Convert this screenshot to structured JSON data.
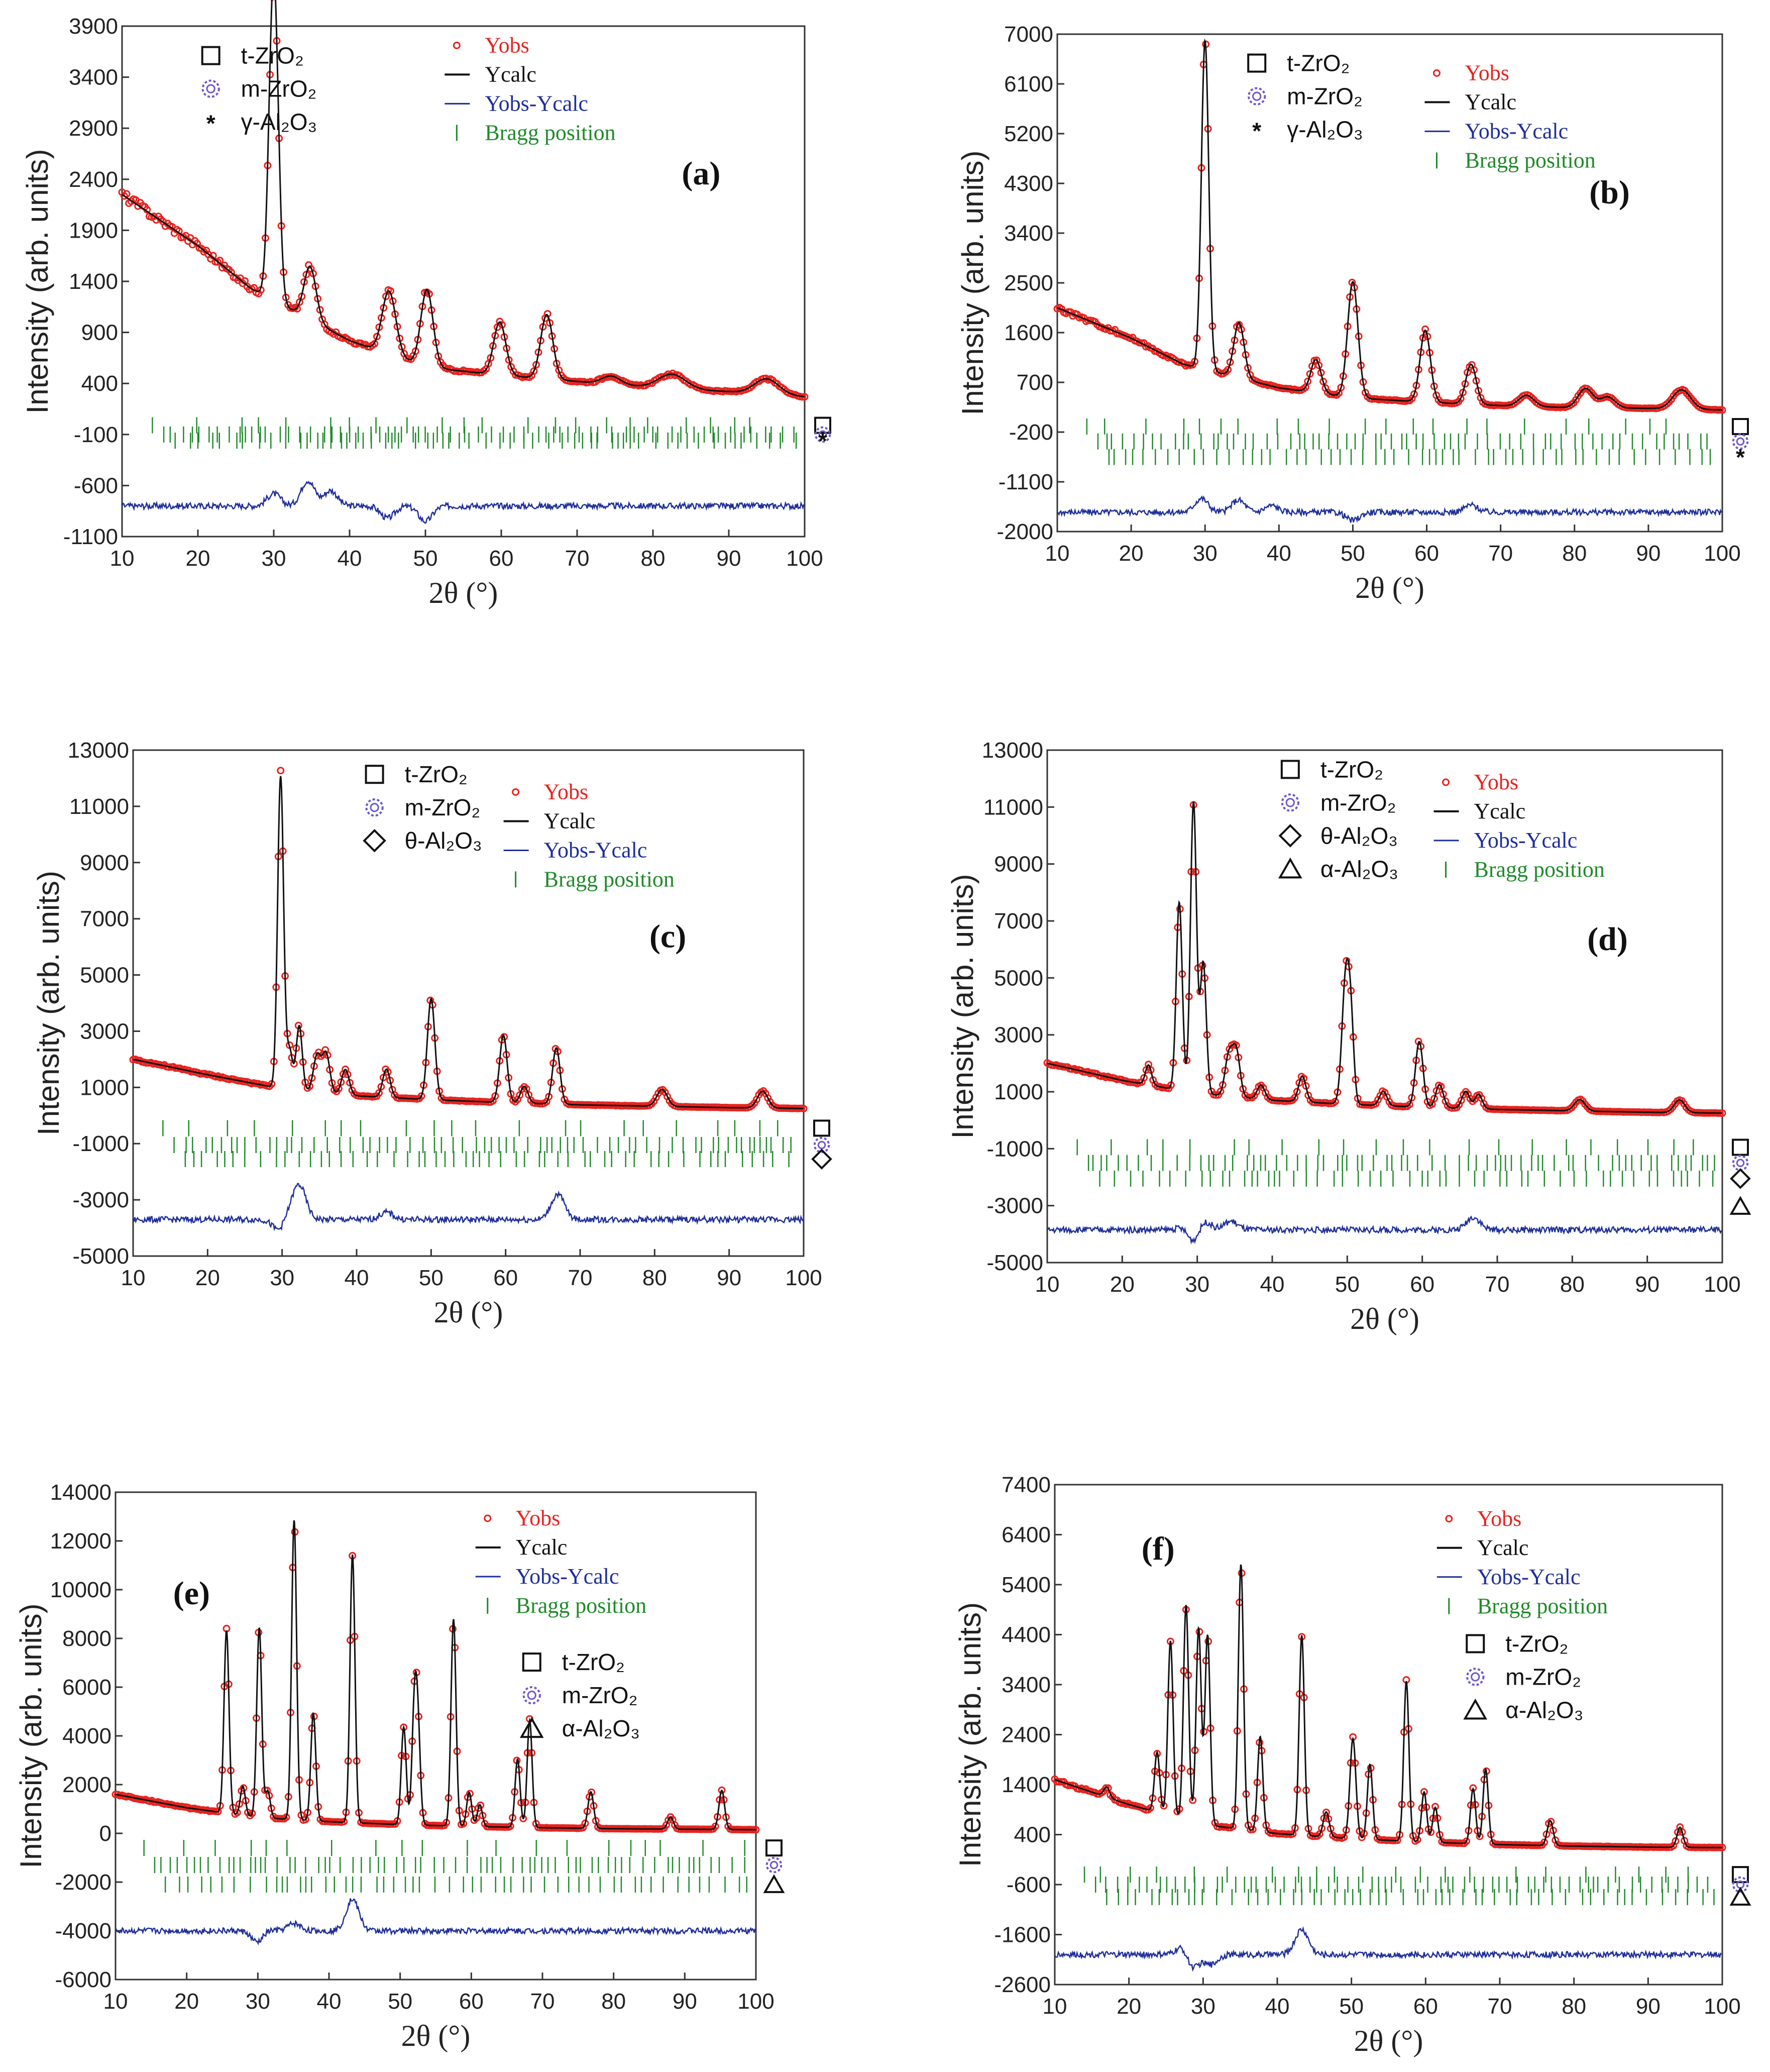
{
  "figure": {
    "x_axis_label": "2θ (°)",
    "y_axis_label": "Intensity (arb. units)"
  },
  "colors": {
    "yobs": "#e8231f",
    "ycalc": "#111111",
    "diff": "#1f2f9a",
    "bragg": "#1f8a2a",
    "marker_m": "#6a5acd"
  },
  "chart_data": [
    {
      "id": "a",
      "tag": "(a)",
      "type": "line",
      "xlim": [
        10,
        100
      ],
      "ylim": [
        -1100,
        3900
      ],
      "yticks": [
        3900,
        3400,
        2900,
        2400,
        1900,
        1400,
        900,
        400,
        -100,
        -600,
        -1100
      ],
      "xticks": [
        10,
        20,
        30,
        40,
        50,
        60,
        70,
        80,
        90,
        100
      ],
      "background": [
        [
          10,
          2250
        ],
        [
          20,
          1750
        ],
        [
          27,
          1330
        ],
        [
          40,
          820
        ],
        [
          50,
          560
        ],
        [
          60,
          480
        ],
        [
          70,
          420
        ],
        [
          80,
          360
        ],
        [
          90,
          320
        ],
        [
          100,
          270
        ]
      ],
      "peaks": [
        [
          30.0,
          3200,
          0.6
        ],
        [
          34.8,
          520,
          0.8
        ],
        [
          45.2,
          620,
          0.9
        ],
        [
          50.2,
          760,
          0.8
        ],
        [
          59.8,
          520,
          0.8
        ],
        [
          66.0,
          630,
          0.8
        ],
        [
          74.5,
          80,
          1.2
        ],
        [
          82.5,
          140,
          1.8
        ],
        [
          95.0,
          150,
          1.6
        ]
      ],
      "diff_baseline": -800,
      "diff_features": [
        [
          30,
          120
        ],
        [
          34.5,
          250
        ],
        [
          37.5,
          150
        ],
        [
          45,
          -120
        ],
        [
          50,
          -150
        ]
      ],
      "bragg_rows": [
        -10,
        -100,
        -160
      ],
      "legend_position": "top",
      "phases": [
        {
          "marker": "square",
          "label": "t-ZrO₂"
        },
        {
          "marker": "gear",
          "label": "m-ZrO₂"
        },
        {
          "marker": "asterisk",
          "label": "γ-Al₂O₃"
        }
      ],
      "series": [
        "Yobs",
        "Ycalc",
        "Yobs-Ycalc",
        "Bragg position"
      ]
    },
    {
      "id": "b",
      "tag": "(b)",
      "type": "line",
      "xlim": [
        10,
        100
      ],
      "ylim": [
        -2000,
        7000
      ],
      "yticks": [
        7000,
        6100,
        5200,
        4300,
        3400,
        2500,
        1600,
        700,
        -200,
        -1100,
        -2000
      ],
      "xticks": [
        10,
        20,
        30,
        40,
        50,
        60,
        70,
        80,
        90,
        100
      ],
      "background": [
        [
          10,
          2050
        ],
        [
          20,
          1500
        ],
        [
          27,
          1030
        ],
        [
          40,
          600
        ],
        [
          50,
          420
        ],
        [
          60,
          340
        ],
        [
          70,
          280
        ],
        [
          80,
          240
        ],
        [
          90,
          230
        ],
        [
          100,
          200
        ]
      ],
      "peaks": [
        [
          30.0,
          5950,
          0.5
        ],
        [
          34.6,
          1000,
          0.7
        ],
        [
          45.0,
          600,
          0.7
        ],
        [
          50.0,
          2100,
          0.7
        ],
        [
          59.8,
          1300,
          0.7
        ],
        [
          66.0,
          720,
          0.7
        ],
        [
          73.5,
          200,
          1.0
        ],
        [
          81.5,
          350,
          1.0
        ],
        [
          84.5,
          200,
          1.0
        ],
        [
          94.5,
          350,
          1.2
        ]
      ],
      "diff_baseline": -1650,
      "diff_features": [
        [
          29.5,
          250
        ],
        [
          34.5,
          220
        ],
        [
          39,
          120
        ],
        [
          50,
          -150
        ],
        [
          66,
          130
        ]
      ],
      "bragg_rows": [
        -100,
        -370,
        -650
      ],
      "legend_position": "top",
      "phases": [
        {
          "marker": "square",
          "label": "t-ZrO₂"
        },
        {
          "marker": "gear",
          "label": "m-ZrO₂"
        },
        {
          "marker": "asterisk",
          "label": "γ-Al₂O₃"
        }
      ],
      "series": [
        "Yobs",
        "Ycalc",
        "Yobs-Ycalc",
        "Bragg position"
      ]
    },
    {
      "id": "c",
      "tag": "(c)",
      "type": "line",
      "xlim": [
        10,
        100
      ],
      "ylim": [
        -5000,
        13000
      ],
      "yticks": [
        13000,
        11000,
        9000,
        7000,
        5000,
        3000,
        1000,
        -1000,
        -3000,
        -5000
      ],
      "xticks": [
        10,
        20,
        30,
        40,
        50,
        60,
        70,
        80,
        90,
        100
      ],
      "background": [
        [
          10,
          2000
        ],
        [
          20,
          1450
        ],
        [
          30,
          950
        ],
        [
          40,
          700
        ],
        [
          50,
          560
        ],
        [
          60,
          460
        ],
        [
          70,
          380
        ],
        [
          80,
          330
        ],
        [
          90,
          280
        ],
        [
          100,
          250
        ]
      ],
      "peaks": [
        [
          29.8,
          11100,
          0.4
        ],
        [
          31.0,
          1400,
          0.4
        ],
        [
          32.3,
          2300,
          0.4
        ],
        [
          34.7,
          1300,
          0.5
        ],
        [
          35.9,
          1400,
          0.5
        ],
        [
          38.5,
          900,
          0.5
        ],
        [
          44.0,
          1000,
          0.5
        ],
        [
          50.0,
          3600,
          0.5
        ],
        [
          59.7,
          2400,
          0.5
        ],
        [
          62.5,
          600,
          0.5
        ],
        [
          66.8,
          2000,
          0.5
        ],
        [
          81.0,
          600,
          0.7
        ],
        [
          94.5,
          600,
          0.7
        ]
      ],
      "diff_baseline": -3700,
      "diff_features": [
        [
          29.8,
          -600
        ],
        [
          32.3,
          1200
        ],
        [
          44,
          250
        ],
        [
          67,
          900
        ],
        [
          30.5,
          400
        ]
      ],
      "bragg_rows": [
        -450,
        -1050,
        -1550
      ],
      "legend_position": "top",
      "phases": [
        {
          "marker": "square",
          "label": "t-ZrO₂"
        },
        {
          "marker": "gear",
          "label": "m-ZrO₂"
        },
        {
          "marker": "diamond",
          "label": "θ-Al₂O₃"
        }
      ],
      "series": [
        "Yobs",
        "Ycalc",
        "Yobs-Ycalc",
        "Bragg position"
      ]
    },
    {
      "id": "d",
      "tag": "(d)",
      "type": "line",
      "xlim": [
        10,
        100
      ],
      "ylim": [
        -5000,
        13000
      ],
      "yticks": [
        13000,
        11000,
        9000,
        7000,
        5000,
        3000,
        1000,
        -1000,
        -3000,
        -5000
      ],
      "xticks": [
        10,
        20,
        30,
        40,
        50,
        60,
        70,
        80,
        90,
        100
      ],
      "background": [
        [
          10,
          2000
        ],
        [
          20,
          1400
        ],
        [
          30,
          950
        ],
        [
          40,
          700
        ],
        [
          50,
          560
        ],
        [
          60,
          460
        ],
        [
          70,
          380
        ],
        [
          80,
          330
        ],
        [
          90,
          280
        ],
        [
          100,
          250
        ]
      ],
      "peaks": [
        [
          23.5,
          700,
          0.4
        ],
        [
          27.6,
          6600,
          0.4
        ],
        [
          29.5,
          10200,
          0.4
        ],
        [
          30.8,
          4600,
          0.4
        ],
        [
          34.2,
          1400,
          0.5
        ],
        [
          35.2,
          1600,
          0.5
        ],
        [
          38.5,
          500,
          0.5
        ],
        [
          44.0,
          900,
          0.5
        ],
        [
          49.8,
          4400,
          0.5
        ],
        [
          50.5,
          2300,
          0.4
        ],
        [
          54.8,
          500,
          0.5
        ],
        [
          59.6,
          2300,
          0.5
        ],
        [
          62.3,
          800,
          0.5
        ],
        [
          65.8,
          600,
          0.5
        ],
        [
          67.5,
          500,
          0.5
        ],
        [
          81.0,
          400,
          0.7
        ],
        [
          94.3,
          450,
          0.7
        ]
      ],
      "diff_baseline": -3850,
      "diff_features": [
        [
          28.5,
          200
        ],
        [
          29.5,
          -600
        ],
        [
          30.8,
          400
        ],
        [
          34.5,
          300
        ],
        [
          66.8,
          450
        ]
      ],
      "bragg_rows": [
        -950,
        -1500,
        -2050
      ],
      "legend_position": "top",
      "phases": [
        {
          "marker": "square",
          "label": "t-ZrO₂"
        },
        {
          "marker": "gear",
          "label": "m-ZrO₂"
        },
        {
          "marker": "diamond",
          "label": "θ-Al₂O₃"
        },
        {
          "marker": "triangle",
          "label": "α-Al₂O₃"
        }
      ],
      "series": [
        "Yobs",
        "Ycalc",
        "Yobs-Ycalc",
        "Bragg position"
      ]
    },
    {
      "id": "e",
      "tag": "(e)",
      "type": "line",
      "xlim": [
        10,
        100
      ],
      "ylim": [
        -6000,
        14000
      ],
      "yticks": [
        14000,
        12000,
        10000,
        8000,
        6000,
        4000,
        2000,
        0,
        -2000,
        -4000,
        -6000
      ],
      "xticks": [
        10,
        20,
        30,
        40,
        50,
        60,
        70,
        80,
        90,
        100
      ],
      "background": [
        [
          10,
          1600
        ],
        [
          20,
          1050
        ],
        [
          30,
          650
        ],
        [
          40,
          480
        ],
        [
          50,
          360
        ],
        [
          60,
          280
        ],
        [
          70,
          230
        ],
        [
          80,
          190
        ],
        [
          90,
          170
        ],
        [
          100,
          150
        ]
      ],
      "peaks": [
        [
          25.6,
          7500,
          0.35
        ],
        [
          27.9,
          1200,
          0.35
        ],
        [
          30.2,
          7800,
          0.35
        ],
        [
          31.4,
          1100,
          0.35
        ],
        [
          35.1,
          12300,
          0.35
        ],
        [
          37.8,
          4400,
          0.35
        ],
        [
          43.3,
          11000,
          0.35
        ],
        [
          52.5,
          3600,
          0.35
        ],
        [
          52.0,
          4500,
          0.35
        ],
        [
          57.5,
          8500,
          0.35
        ],
        [
          59.7,
          1400,
          0.35
        ],
        [
          61.2,
          900,
          0.35
        ],
        [
          66.5,
          2800,
          0.35
        ],
        [
          68.2,
          4400,
          0.35
        ],
        [
          76.8,
          1500,
          0.4
        ],
        [
          88.0,
          500,
          0.4
        ],
        [
          95.2,
          1600,
          0.4
        ],
        [
          50.5,
          4000,
          0.35
        ]
      ],
      "diff_baseline": -4000,
      "diff_features": [
        [
          30.2,
          -1000
        ],
        [
          35.1,
          300
        ],
        [
          43.3,
          1300
        ],
        [
          30.5,
          600
        ]
      ],
      "bragg_rows": [
        -600,
        -1300,
        -2100
      ],
      "legend_position": "top-right",
      "phases": [
        {
          "marker": "square",
          "label": "t-ZrO₂"
        },
        {
          "marker": "gear",
          "label": "m-ZrO₂"
        },
        {
          "marker": "triangle",
          "label": "α-Al₂O₃"
        }
      ],
      "series": [
        "Yobs",
        "Ycalc",
        "Yobs-Ycalc",
        "Bragg position"
      ]
    },
    {
      "id": "f",
      "tag": "(f)",
      "type": "line",
      "xlim": [
        10,
        100
      ],
      "ylim": [
        -2600,
        7400
      ],
      "yticks": [
        7400,
        6400,
        5400,
        4400,
        3400,
        2400,
        1400,
        400,
        -600,
        -1600,
        -2600
      ],
      "xticks": [
        10,
        20,
        30,
        40,
        50,
        60,
        70,
        80,
        90,
        100
      ],
      "background": [
        [
          10,
          1500
        ],
        [
          20,
          1000
        ],
        [
          30,
          600
        ],
        [
          40,
          420
        ],
        [
          50,
          320
        ],
        [
          60,
          250
        ],
        [
          70,
          200
        ],
        [
          80,
          170
        ],
        [
          90,
          150
        ],
        [
          100,
          140
        ]
      ],
      "peaks": [
        [
          17.0,
          200,
          0.4
        ],
        [
          23.8,
          1200,
          0.35
        ],
        [
          25.6,
          3500,
          0.35
        ],
        [
          27.7,
          4300,
          0.35
        ],
        [
          29.4,
          3900,
          0.35
        ],
        [
          30.6,
          3800,
          0.35
        ],
        [
          35.1,
          5300,
          0.35
        ],
        [
          37.7,
          1900,
          0.35
        ],
        [
          43.3,
          4000,
          0.35
        ],
        [
          46.6,
          500,
          0.4
        ],
        [
          50.2,
          2000,
          0.4
        ],
        [
          52.5,
          1500,
          0.35
        ],
        [
          57.4,
          3200,
          0.35
        ],
        [
          59.8,
          1000,
          0.35
        ],
        [
          61.3,
          700,
          0.35
        ],
        [
          66.4,
          1100,
          0.35
        ],
        [
          68.1,
          1500,
          0.35
        ],
        [
          76.8,
          500,
          0.4
        ],
        [
          94.3,
          400,
          0.4
        ]
      ],
      "diff_baseline": -2000,
      "diff_features": [
        [
          27.7,
          500
        ],
        [
          28.2,
          -600
        ],
        [
          43.3,
          500
        ],
        [
          31,
          -200
        ]
      ],
      "bragg_rows": [
        -400,
        -600,
        -850
      ],
      "legend_position": "top",
      "phases": [
        {
          "marker": "square",
          "label": "t-ZrO₂"
        },
        {
          "marker": "gear",
          "label": "m-ZrO₂"
        },
        {
          "marker": "triangle",
          "label": "α-Al₂O₃"
        }
      ],
      "series": [
        "Yobs",
        "Ycalc",
        "Yobs-Ycalc",
        "Bragg position"
      ]
    }
  ]
}
